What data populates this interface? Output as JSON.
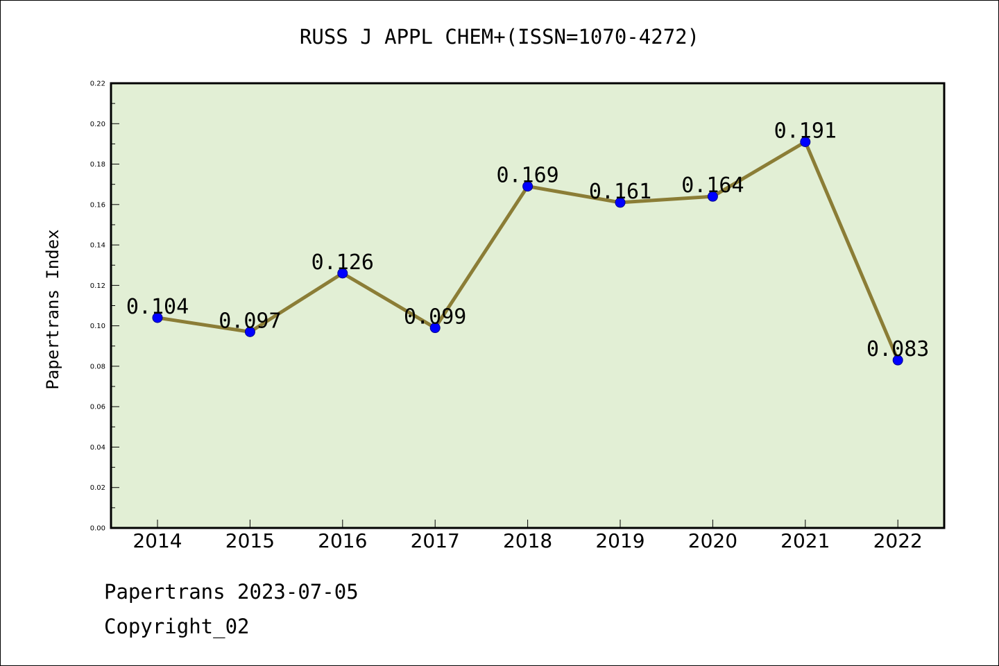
{
  "chart_data": {
    "type": "line",
    "title": "RUSS J APPL CHEM+(ISSN=1070-4272)",
    "ylabel": "Papertrans Index",
    "xlabel": "",
    "categories": [
      "2014",
      "2015",
      "2016",
      "2017",
      "2018",
      "2019",
      "2020",
      "2021",
      "2022"
    ],
    "series": [
      {
        "values": [
          0.104,
          0.097,
          0.126,
          0.099,
          0.169,
          0.161,
          0.164,
          0.191,
          0.083
        ],
        "labels": [
          "0.104",
          "0.097",
          "0.126",
          "0.099",
          "0.169",
          "0.161",
          "0.164",
          "0.191",
          "0.083"
        ]
      }
    ],
    "ylim": [
      0,
      0.22
    ],
    "yticks": [
      "0.00",
      "0.02",
      "0.04",
      "0.06",
      "0.08",
      "0.10",
      "0.12",
      "0.14",
      "0.16",
      "0.18",
      "0.20",
      "0.22"
    ],
    "grid": false,
    "colors": {
      "plot_background": "#e2efd5",
      "line": "#8b7d36",
      "marker": "#0000ff"
    }
  },
  "footer": {
    "line1": "Papertrans 2023-07-05",
    "line2": "Copyright_02"
  }
}
